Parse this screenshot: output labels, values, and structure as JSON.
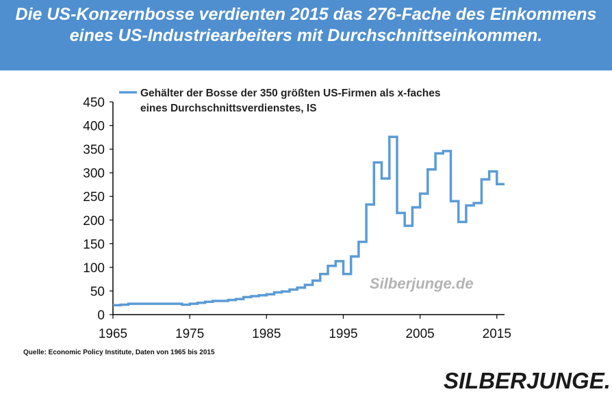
{
  "header": {
    "title": "Die US-Konzernbosse verdienten 2015 das 276-Fache des Einkommens eines US-Industriearbeiters mit Durchschnittseinkommen."
  },
  "chart_data": {
    "type": "line",
    "step": true,
    "title": "",
    "xlabel": "",
    "ylabel": "",
    "xlim": [
      1965,
      2016
    ],
    "ylim": [
      0,
      450
    ],
    "x_ticks": [
      1965,
      1975,
      1985,
      1995,
      2005,
      2015
    ],
    "y_ticks": [
      0,
      50,
      100,
      150,
      200,
      250,
      300,
      350,
      400,
      450
    ],
    "grid": false,
    "legend_position": "top-left",
    "watermark": "Silberjunge.de",
    "series": [
      {
        "name": "Gehälter der Bosse der 350 größten US-Firmen als x-faches eines Durchschnittsverdienstes, IS",
        "color": "#5b9bd5",
        "x": [
          1965,
          1966,
          1967,
          1968,
          1969,
          1970,
          1971,
          1972,
          1973,
          1974,
          1975,
          1976,
          1977,
          1978,
          1979,
          1980,
          1981,
          1982,
          1983,
          1984,
          1985,
          1986,
          1987,
          1988,
          1989,
          1990,
          1991,
          1992,
          1993,
          1994,
          1995,
          1996,
          1997,
          1998,
          1999,
          2000,
          2001,
          2002,
          2003,
          2004,
          2005,
          2006,
          2007,
          2008,
          2009,
          2010,
          2011,
          2012,
          2013,
          2014,
          2015
        ],
        "y": [
          20,
          21,
          23,
          23,
          23,
          23,
          23,
          23,
          23,
          21,
          23,
          25,
          27,
          29,
          29,
          31,
          33,
          37,
          39,
          41,
          43,
          47,
          49,
          53,
          57,
          63,
          72,
          86,
          103,
          113,
          86,
          123,
          154,
          233,
          322,
          288,
          376,
          215,
          188,
          227,
          256,
          307,
          341,
          346,
          240,
          196,
          231,
          236,
          286,
          303,
          276
        ]
      }
    ]
  },
  "legend": {
    "line1": "Gehälter der Bosse der 350 größten US-Firmen als x-faches",
    "line2": "eines Durchschnittsverdienstes, IS"
  },
  "source_note": "Quelle: Economic Policy Institute,  Daten von 1965 bis 2015",
  "logo": {
    "text": "SILBERJUNGE."
  }
}
